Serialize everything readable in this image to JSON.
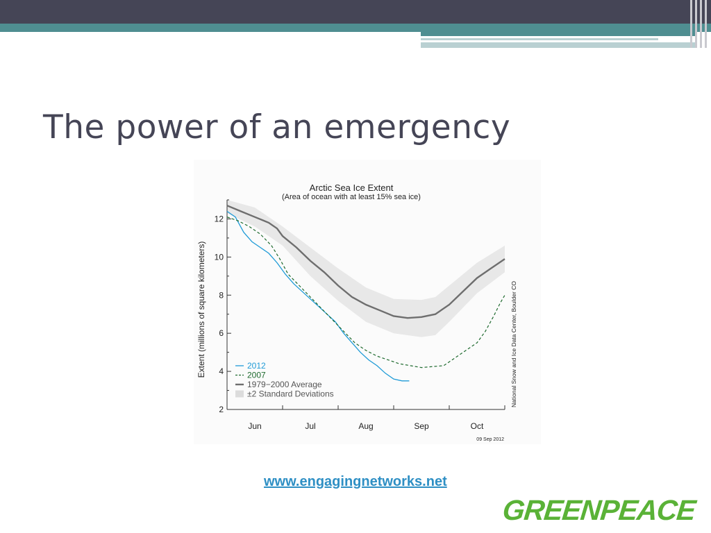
{
  "slide": {
    "title": "The power of an emergency",
    "link": "www.engagingnetworks.net",
    "logo": "GREENPEACE",
    "colors": {
      "header": "#454556",
      "accent": "#4f8e91",
      "link": "#2e8fc4",
      "logo": "#5ab237"
    }
  },
  "chart_data": {
    "type": "line",
    "title": "Arctic Sea Ice Extent",
    "subtitle": "(Area of ocean with at least 15% sea ice)",
    "ylabel": "Extent (millions of square kilometers)",
    "xlabel": "",
    "ylim": [
      2,
      13
    ],
    "yticks": [
      2,
      4,
      6,
      8,
      10,
      12
    ],
    "xlim": [
      0,
      5
    ],
    "xticks": [
      {
        "label": "Jun",
        "x": 0.5
      },
      {
        "label": "Jul",
        "x": 1.5
      },
      {
        "label": "Aug",
        "x": 2.5
      },
      {
        "label": "Sep",
        "x": 3.5
      },
      {
        "label": "Oct",
        "x": 4.5
      }
    ],
    "source_note": "National Snow and Ice Data Center, Boulder CO",
    "date_note": "09 Sep 2012",
    "legend_placement": "bottom-left",
    "series": [
      {
        "name": "2012",
        "style": "solid",
        "color": "#1f9bd7",
        "points": [
          [
            0,
            12.4
          ],
          [
            0.15,
            12.1
          ],
          [
            0.3,
            11.3
          ],
          [
            0.45,
            10.8
          ],
          [
            0.6,
            10.5
          ],
          [
            0.75,
            10.2
          ],
          [
            0.9,
            9.7
          ],
          [
            1.05,
            9.1
          ],
          [
            1.2,
            8.6
          ],
          [
            1.35,
            8.2
          ],
          [
            1.5,
            7.8
          ],
          [
            1.65,
            7.4
          ],
          [
            1.8,
            7.0
          ],
          [
            1.95,
            6.6
          ],
          [
            2.1,
            6.0
          ],
          [
            2.25,
            5.5
          ],
          [
            2.4,
            5.0
          ],
          [
            2.55,
            4.6
          ],
          [
            2.7,
            4.3
          ],
          [
            2.85,
            3.9
          ],
          [
            3.0,
            3.6
          ],
          [
            3.15,
            3.5
          ],
          [
            3.28,
            3.5
          ]
        ]
      },
      {
        "name": "2007",
        "style": "dashed",
        "color": "#1e6a2e",
        "points": [
          [
            0,
            12.1
          ],
          [
            0.2,
            11.9
          ],
          [
            0.4,
            11.6
          ],
          [
            0.6,
            11.2
          ],
          [
            0.8,
            10.6
          ],
          [
            0.95,
            9.9
          ],
          [
            1.1,
            9.1
          ],
          [
            1.3,
            8.5
          ],
          [
            1.5,
            7.9
          ],
          [
            1.7,
            7.3
          ],
          [
            1.9,
            6.7
          ],
          [
            2.1,
            6.1
          ],
          [
            2.3,
            5.5
          ],
          [
            2.5,
            5.1
          ],
          [
            2.7,
            4.8
          ],
          [
            2.9,
            4.6
          ],
          [
            3.1,
            4.4
          ],
          [
            3.3,
            4.3
          ],
          [
            3.5,
            4.2
          ],
          [
            3.7,
            4.25
          ],
          [
            3.9,
            4.3
          ],
          [
            4.1,
            4.7
          ],
          [
            4.3,
            5.1
          ],
          [
            4.5,
            5.5
          ],
          [
            4.65,
            6.1
          ],
          [
            4.8,
            6.9
          ],
          [
            4.92,
            7.6
          ],
          [
            5.0,
            8.0
          ]
        ]
      },
      {
        "name": "1979−2000 Average",
        "style": "solid-thick",
        "color": "#6e6e6e",
        "points": [
          [
            0,
            12.7
          ],
          [
            0.25,
            12.4
          ],
          [
            0.5,
            12.1
          ],
          [
            0.75,
            11.8
          ],
          [
            0.9,
            11.5
          ],
          [
            1.0,
            11.1
          ],
          [
            1.25,
            10.5
          ],
          [
            1.5,
            9.8
          ],
          [
            1.75,
            9.2
          ],
          [
            2.0,
            8.5
          ],
          [
            2.25,
            7.9
          ],
          [
            2.5,
            7.5
          ],
          [
            2.75,
            7.2
          ],
          [
            3.0,
            6.9
          ],
          [
            3.25,
            6.8
          ],
          [
            3.5,
            6.85
          ],
          [
            3.75,
            7.0
          ],
          [
            4.0,
            7.5
          ],
          [
            4.25,
            8.2
          ],
          [
            4.5,
            8.9
          ],
          [
            4.75,
            9.4
          ],
          [
            5.0,
            9.9
          ]
        ]
      }
    ],
    "band": {
      "name": "±2 Standard Deviations",
      "color": "#e8e8e8",
      "upper": [
        [
          0,
          13.0
        ],
        [
          0.5,
          12.6
        ],
        [
          1.0,
          11.6
        ],
        [
          1.5,
          10.5
        ],
        [
          2.0,
          9.4
        ],
        [
          2.5,
          8.4
        ],
        [
          3.0,
          7.8
        ],
        [
          3.5,
          7.75
        ],
        [
          3.75,
          7.9
        ],
        [
          4.0,
          8.5
        ],
        [
          4.5,
          9.7
        ],
        [
          5.0,
          10.6
        ]
      ],
      "lower": [
        [
          0,
          12.3
        ],
        [
          0.5,
          11.6
        ],
        [
          1.0,
          10.6
        ],
        [
          1.5,
          9.0
        ],
        [
          2.0,
          7.7
        ],
        [
          2.5,
          6.6
        ],
        [
          3.0,
          6.0
        ],
        [
          3.5,
          5.8
        ],
        [
          3.75,
          5.9
        ],
        [
          4.0,
          6.6
        ],
        [
          4.5,
          8.1
        ],
        [
          5.0,
          9.2
        ]
      ]
    }
  }
}
